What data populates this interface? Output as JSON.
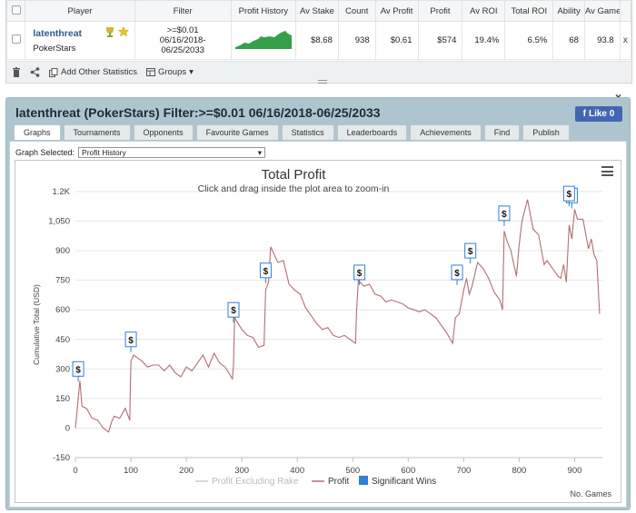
{
  "table": {
    "headers": [
      "",
      "Player",
      "Filter",
      "Profit History",
      "Av Stake",
      "Count",
      "Av Profit",
      "Profit",
      "Av ROI",
      "Total ROI",
      "Ability",
      "Av Game"
    ],
    "row": {
      "player_name": "latenthreat",
      "player_site": "PokerStars",
      "filter_line1": ">=$0.01",
      "filter_line2": "06/16/2018-",
      "filter_line3": "06/25/2033",
      "av_stake": "$8.68",
      "count": "938",
      "av_profit": "$0.61",
      "profit": "$574",
      "av_roi": "19.4%",
      "total_roi": "6.5%",
      "ability": "68",
      "av_game": "93.8",
      "close": "x"
    }
  },
  "toolbar": {
    "add_stats": "Add Other Statistics",
    "groups": "Groups"
  },
  "panel": {
    "title": "latenthreat (PokerStars) Filter:>=$0.01 06/16/2018-06/25/2033",
    "like": "Like 0",
    "close": "×"
  },
  "tabs": [
    "Graphs",
    "Tournaments",
    "Opponents",
    "Favourite Games",
    "Statistics",
    "Leaderboards",
    "Achievements",
    "Find",
    "Publish"
  ],
  "graph_select": {
    "label": "Graph Selected:",
    "value": "Profit History"
  },
  "chart_data": {
    "type": "line",
    "title": "Total Profit",
    "subtitle": "Click and drag inside the plot area to zoom-in",
    "xlabel": "No. Games",
    "ylabel": "Cumulative Total (USD)",
    "xlim": [
      0,
      950
    ],
    "ylim": [
      -150,
      1200
    ],
    "x_ticks": [
      "0",
      "100",
      "200",
      "300",
      "400",
      "500",
      "600",
      "700",
      "800",
      "900"
    ],
    "y_ticks": [
      "-150",
      "0",
      "150",
      "300",
      "450",
      "600",
      "750",
      "900",
      "1,050",
      "1.2K"
    ],
    "legend": [
      {
        "name": "Profit Excluding Rake",
        "color": "#cccccc"
      },
      {
        "name": "Profit",
        "color": "#b07070"
      },
      {
        "name": "Significant Wins",
        "color": "#2f7ed8"
      }
    ],
    "series": [
      {
        "name": "Profit",
        "color": "#b07070",
        "points": [
          [
            0,
            0
          ],
          [
            5,
            150
          ],
          [
            8,
            240
          ],
          [
            12,
            110
          ],
          [
            20,
            100
          ],
          [
            30,
            50
          ],
          [
            40,
            40
          ],
          [
            50,
            0
          ],
          [
            60,
            -20
          ],
          [
            65,
            30
          ],
          [
            70,
            60
          ],
          [
            80,
            50
          ],
          [
            90,
            100
          ],
          [
            98,
            40
          ],
          [
            100,
            340
          ],
          [
            105,
            370
          ],
          [
            120,
            340
          ],
          [
            130,
            310
          ],
          [
            140,
            320
          ],
          [
            150,
            320
          ],
          [
            160,
            290
          ],
          [
            170,
            320
          ],
          [
            180,
            280
          ],
          [
            190,
            260
          ],
          [
            200,
            310
          ],
          [
            205,
            300
          ],
          [
            210,
            290
          ],
          [
            220,
            330
          ],
          [
            230,
            370
          ],
          [
            240,
            310
          ],
          [
            250,
            380
          ],
          [
            260,
            330
          ],
          [
            270,
            310
          ],
          [
            283,
            250
          ],
          [
            285,
            320
          ],
          [
            287,
            560
          ],
          [
            300,
            500
          ],
          [
            310,
            470
          ],
          [
            320,
            460
          ],
          [
            330,
            410
          ],
          [
            340,
            420
          ],
          [
            343,
            700
          ],
          [
            348,
            740
          ],
          [
            352,
            920
          ],
          [
            365,
            840
          ],
          [
            375,
            850
          ],
          [
            385,
            730
          ],
          [
            395,
            700
          ],
          [
            405,
            680
          ],
          [
            415,
            610
          ],
          [
            425,
            570
          ],
          [
            435,
            530
          ],
          [
            445,
            500
          ],
          [
            455,
            510
          ],
          [
            465,
            470
          ],
          [
            475,
            460
          ],
          [
            485,
            470
          ],
          [
            495,
            450
          ],
          [
            505,
            430
          ],
          [
            507,
            600
          ],
          [
            510,
            750
          ],
          [
            520,
            720
          ],
          [
            530,
            730
          ],
          [
            540,
            680
          ],
          [
            550,
            670
          ],
          [
            560,
            640
          ],
          [
            570,
            650
          ],
          [
            580,
            640
          ],
          [
            590,
            630
          ],
          [
            600,
            610
          ],
          [
            610,
            600
          ],
          [
            620,
            590
          ],
          [
            630,
            600
          ],
          [
            640,
            580
          ],
          [
            650,
            560
          ],
          [
            660,
            520
          ],
          [
            670,
            480
          ],
          [
            680,
            430
          ],
          [
            685,
            560
          ],
          [
            692,
            580
          ],
          [
            700,
            700
          ],
          [
            705,
            760
          ],
          [
            710,
            680
          ],
          [
            715,
            720
          ],
          [
            725,
            840
          ],
          [
            735,
            810
          ],
          [
            745,
            760
          ],
          [
            755,
            690
          ],
          [
            765,
            650
          ],
          [
            770,
            600
          ],
          [
            773,
            1000
          ],
          [
            778,
            950
          ],
          [
            785,
            900
          ],
          [
            795,
            770
          ],
          [
            800,
            930
          ],
          [
            805,
            1050
          ],
          [
            815,
            1160
          ],
          [
            825,
            1010
          ],
          [
            835,
            980
          ],
          [
            845,
            830
          ],
          [
            850,
            850
          ],
          [
            860,
            810
          ],
          [
            870,
            770
          ],
          [
            875,
            760
          ],
          [
            880,
            830
          ],
          [
            885,
            740
          ],
          [
            890,
            1030
          ],
          [
            895,
            960
          ],
          [
            900,
            1110
          ],
          [
            905,
            1060
          ],
          [
            915,
            1060
          ],
          [
            925,
            910
          ],
          [
            930,
            960
          ],
          [
            935,
            880
          ],
          [
            940,
            850
          ],
          [
            945,
            580
          ]
        ]
      }
    ],
    "significant_wins": [
      [
        5,
        300
      ],
      [
        100,
        450
      ],
      [
        285,
        600
      ],
      [
        343,
        800
      ],
      [
        512,
        790
      ],
      [
        688,
        790
      ],
      [
        712,
        900
      ],
      [
        773,
        1090
      ],
      [
        895,
        1180
      ],
      [
        890,
        1190
      ]
    ]
  }
}
